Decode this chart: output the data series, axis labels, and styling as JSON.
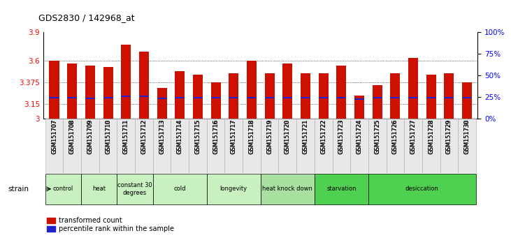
{
  "title": "GDS2830 / 142968_at",
  "samples": [
    "GSM151707",
    "GSM151708",
    "GSM151709",
    "GSM151710",
    "GSM151711",
    "GSM151712",
    "GSM151713",
    "GSM151714",
    "GSM151715",
    "GSM151716",
    "GSM151717",
    "GSM151718",
    "GSM151719",
    "GSM151720",
    "GSM151721",
    "GSM151722",
    "GSM151723",
    "GSM151724",
    "GSM151725",
    "GSM151726",
    "GSM151727",
    "GSM151728",
    "GSM151729",
    "GSM151730"
  ],
  "bar_heights": [
    3.6,
    3.57,
    3.55,
    3.54,
    3.77,
    3.7,
    3.32,
    3.49,
    3.46,
    3.38,
    3.47,
    3.6,
    3.47,
    3.57,
    3.47,
    3.47,
    3.55,
    3.24,
    3.345,
    3.47,
    3.63,
    3.46,
    3.47,
    3.375
  ],
  "blue_marker_positions": [
    3.22,
    3.22,
    3.21,
    3.22,
    3.23,
    3.23,
    3.21,
    3.22,
    3.22,
    3.22,
    3.22,
    3.22,
    3.22,
    3.22,
    3.22,
    3.22,
    3.22,
    3.2,
    3.22,
    3.22,
    3.22,
    3.22,
    3.22,
    3.22
  ],
  "groups_config": [
    {
      "label": "control",
      "cols": [
        0,
        1
      ],
      "color": "#c8f0c0"
    },
    {
      "label": "heat",
      "cols": [
        2,
        3
      ],
      "color": "#c8f0c0"
    },
    {
      "label": "constant 30\ndegrees",
      "cols": [
        4,
        5
      ],
      "color": "#c8f0c0"
    },
    {
      "label": "cold",
      "cols": [
        6,
        7,
        8
      ],
      "color": "#c8f0c0"
    },
    {
      "label": "longevity",
      "cols": [
        9,
        10,
        11
      ],
      "color": "#c8f0c0"
    },
    {
      "label": "heat knock down",
      "cols": [
        12,
        13,
        14
      ],
      "color": "#a8e0a0"
    },
    {
      "label": "starvation",
      "cols": [
        15,
        16,
        17
      ],
      "color": "#50d050"
    },
    {
      "label": "desiccation",
      "cols": [
        18,
        19,
        20,
        21,
        22,
        23
      ],
      "color": "#50d050"
    }
  ],
  "bar_color": "#cc1100",
  "blue_color": "#2222cc",
  "ymin": 3.0,
  "ymax": 3.9,
  "yticks_left": [
    3.0,
    3.15,
    3.375,
    3.6,
    3.9
  ],
  "yticks_left_labels": [
    "3",
    "3.15",
    "3.375",
    "3.6",
    "3.9"
  ],
  "yticks_right_pct": [
    0,
    25,
    50,
    75,
    100
  ],
  "yticks_right_labels": [
    "0%",
    "25%",
    "50%",
    "75%",
    "100%"
  ],
  "grid_values": [
    3.15,
    3.375,
    3.6
  ],
  "bar_width": 0.55
}
